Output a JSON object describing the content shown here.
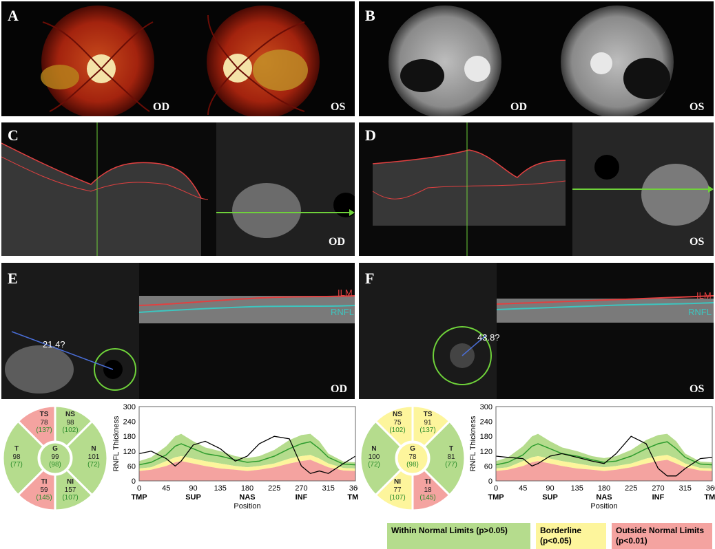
{
  "panels": {
    "A": "A",
    "B": "B",
    "C": "C",
    "D": "D",
    "E": "E",
    "F": "F"
  },
  "eyes": {
    "od": "OD",
    "os": "OS"
  },
  "oct_labels": {
    "ilm": "ILM",
    "rnfl": "RNFL"
  },
  "angles": {
    "od": "21.4?",
    "os": "43.8?"
  },
  "sector_maps": {
    "od": {
      "TS": {
        "name": "TS",
        "value": "78",
        "normal": "(137)"
      },
      "NS": {
        "name": "NS",
        "value": "98",
        "normal": "(102)"
      },
      "T": {
        "name": "T",
        "value": "98",
        "normal": "(77)"
      },
      "G": {
        "name": "G",
        "value": "99",
        "normal": "(98)"
      },
      "N": {
        "name": "N",
        "value": "101",
        "normal": "(72)"
      },
      "TI": {
        "name": "TI",
        "value": "59",
        "normal": "(145)"
      },
      "NI": {
        "name": "NI",
        "value": "157",
        "normal": "(107)"
      }
    },
    "os": {
      "NS": {
        "name": "NS",
        "value": "75",
        "normal": "(102)"
      },
      "TS": {
        "name": "TS",
        "value": "91",
        "normal": "(137)"
      },
      "N": {
        "name": "N",
        "value": "100",
        "normal": "(72)"
      },
      "G": {
        "name": "G",
        "value": "78",
        "normal": "(98)"
      },
      "T": {
        "name": "T",
        "value": "81",
        "normal": "(77)"
      },
      "NI": {
        "name": "NI",
        "value": "77",
        "normal": "(107)"
      },
      "TI": {
        "name": "TI",
        "value": "18",
        "normal": "(145)"
      }
    }
  },
  "chart_data": [
    {
      "type": "area",
      "eye": "OD",
      "xlabel": "Position",
      "ylabel": "RNFL Thickness",
      "xlim": [
        0,
        360
      ],
      "ylim": [
        0,
        300
      ],
      "xticks": [
        "0",
        "45",
        "90",
        "135",
        "180",
        "225",
        "270",
        "315",
        "360"
      ],
      "yticks": [
        "0",
        "60",
        "120",
        "180",
        "240",
        "300"
      ],
      "sector_labels": [
        "TMP",
        "SUP",
        "NAS",
        "INF",
        "TMP"
      ],
      "x": [
        0,
        20,
        45,
        60,
        70,
        90,
        110,
        135,
        160,
        180,
        200,
        225,
        250,
        270,
        285,
        300,
        315,
        340,
        360
      ],
      "series": [
        {
          "values": [
            80,
            95,
            140,
            180,
            190,
            160,
            135,
            120,
            100,
            92,
            100,
            125,
            165,
            185,
            190,
            160,
            110,
            78,
            75
          ]
        },
        {
          "values": [
            65,
            75,
            105,
            140,
            150,
            130,
            110,
            100,
            85,
            75,
            80,
            100,
            130,
            150,
            158,
            130,
            95,
            68,
            65
          ]
        },
        {
          "values": [
            50,
            55,
            80,
            95,
            100,
            90,
            80,
            70,
            60,
            55,
            60,
            70,
            90,
            100,
            105,
            90,
            70,
            52,
            50
          ]
        },
        {
          "values": [
            40,
            45,
            60,
            75,
            80,
            70,
            60,
            50,
            45,
            40,
            45,
            55,
            70,
            80,
            85,
            70,
            55,
            42,
            40
          ]
        },
        {
          "values": [
            110,
            120,
            90,
            60,
            80,
            145,
            160,
            130,
            80,
            100,
            150,
            180,
            170,
            60,
            30,
            40,
            30,
            70,
            100
          ]
        }
      ]
    },
    {
      "type": "area",
      "eye": "OS",
      "xlabel": "Position",
      "ylabel": "RNFL Thickness",
      "xlim": [
        0,
        360
      ],
      "ylim": [
        0,
        300
      ],
      "xticks": [
        "0",
        "45",
        "90",
        "135",
        "180",
        "225",
        "270",
        "315",
        "360"
      ],
      "yticks": [
        "0",
        "60",
        "120",
        "180",
        "240",
        "300"
      ],
      "sector_labels": [
        "TMP",
        "SUP",
        "NAS",
        "INF",
        "TMP"
      ],
      "x": [
        0,
        20,
        45,
        60,
        70,
        90,
        110,
        135,
        160,
        180,
        200,
        225,
        250,
        270,
        285,
        300,
        315,
        340,
        360
      ],
      "series": [
        {
          "values": [
            80,
            95,
            140,
            180,
            190,
            160,
            135,
            120,
            100,
            92,
            100,
            125,
            165,
            185,
            190,
            160,
            110,
            78,
            75
          ]
        },
        {
          "values": [
            65,
            75,
            105,
            140,
            150,
            130,
            110,
            100,
            85,
            75,
            80,
            100,
            130,
            150,
            158,
            130,
            95,
            68,
            65
          ]
        },
        {
          "values": [
            50,
            55,
            80,
            95,
            100,
            90,
            80,
            70,
            60,
            55,
            60,
            70,
            90,
            100,
            105,
            90,
            70,
            52,
            50
          ]
        },
        {
          "values": [
            40,
            45,
            60,
            75,
            80,
            70,
            60,
            50,
            45,
            40,
            45,
            55,
            70,
            80,
            85,
            70,
            55,
            42,
            40
          ]
        },
        {
          "values": [
            100,
            95,
            90,
            60,
            70,
            100,
            110,
            95,
            80,
            70,
            110,
            180,
            150,
            50,
            20,
            20,
            50,
            90,
            95
          ]
        }
      ]
    }
  ],
  "legend": {
    "within": "Within Normal Limits (p>0.05)",
    "border": "Borderline (p<0.05)",
    "outside": "Outside Normal Limits (p<0.01)"
  },
  "colors": {
    "green": "#b5dc8d",
    "yellow": "#fdf59c",
    "red": "#f4a3a0",
    "mean": "#2e9c2e"
  }
}
